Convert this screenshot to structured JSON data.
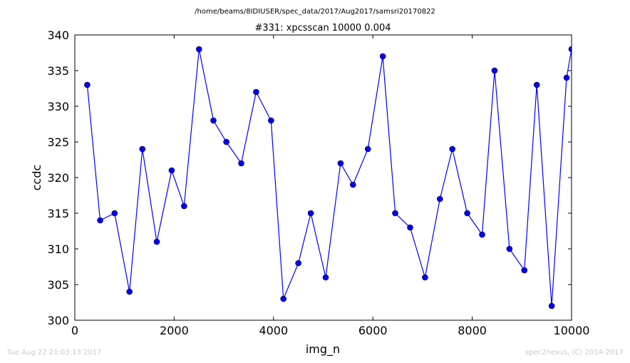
{
  "chart_data": {
    "type": "line",
    "suptitle": "/home/beams/8IDIUSER/spec_data/2017/Aug2017/samsri20170822",
    "title": "#331: xpcsscan 10000 0.004",
    "xlabel": "img_n",
    "ylabel": "ccdc",
    "xlim": [
      0,
      10000
    ],
    "ylim": [
      300,
      340
    ],
    "xticks": [
      0,
      2000,
      4000,
      6000,
      8000,
      10000
    ],
    "yticks": [
      300,
      305,
      310,
      315,
      320,
      325,
      330,
      335,
      340
    ],
    "grid": false,
    "color": "#0000ff",
    "series": [
      {
        "x": [
          250,
          510,
          800,
          1100,
          1360,
          1650,
          1950,
          2200,
          2500,
          2790,
          3050,
          3350,
          3650,
          3950,
          4200,
          4500,
          4750,
          5050,
          5350,
          5600,
          5900,
          6200,
          6450,
          6750,
          7050,
          7350,
          7600,
          7900,
          8200,
          8450,
          8750,
          9050,
          9300,
          9600,
          9900,
          10000
        ],
        "y": [
          333,
          314,
          315,
          304,
          324,
          311,
          321,
          316,
          338,
          328,
          325,
          322,
          332,
          328,
          303,
          308,
          315,
          306,
          322,
          319,
          324,
          337,
          315,
          313,
          306,
          317,
          324,
          315,
          312,
          335,
          310,
          307,
          333,
          302,
          334,
          338
        ]
      }
    ]
  },
  "footer": {
    "timestamp": "Tue Aug 22 21:03:13 2017",
    "credit": "spec2nexus, (C) 2014-2017"
  }
}
